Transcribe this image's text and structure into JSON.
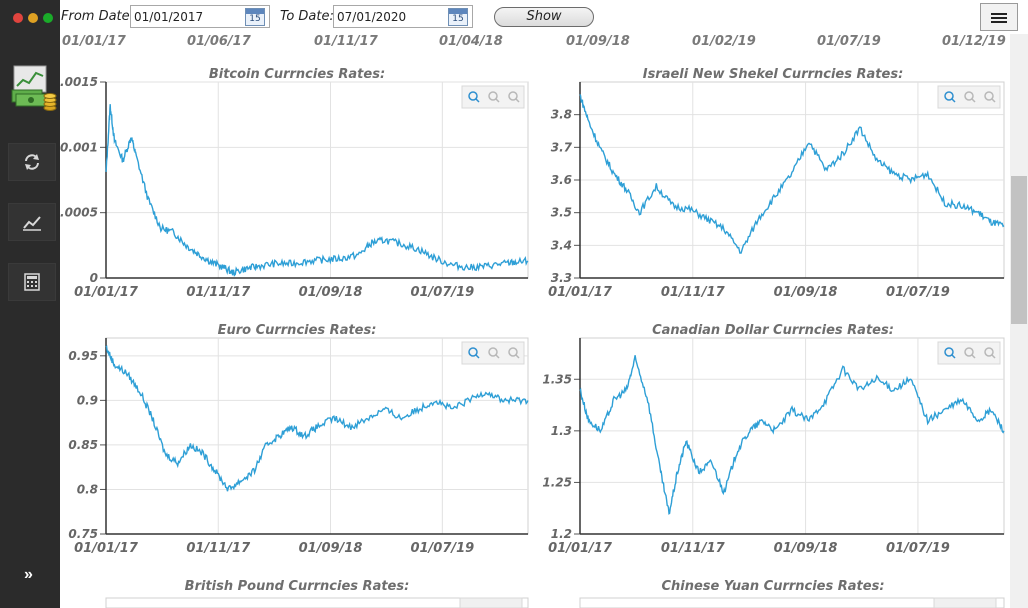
{
  "toolbar": {
    "from_label": "From Date:",
    "from_value": "01/01/2017",
    "to_label": "To Date:",
    "to_value": "07/01/2020",
    "calendar_day": "15",
    "show_label": "Show"
  },
  "timeline": [
    "01/01/17",
    "01/06/17",
    "01/11/17",
    "01/04/18",
    "01/09/18",
    "01/02/19",
    "01/07/19",
    "01/12/19"
  ],
  "colors": {
    "series": "#2e9fd6",
    "sidebar": "#2b2b2b",
    "zoom_icon": "#2e8fcf"
  },
  "chart_data": [
    {
      "type": "line",
      "title": "Bitcoin Currncies Rates:",
      "ylim": [
        0,
        0.0015
      ],
      "yticks": [
        "0",
        "0.0005",
        "0.001",
        "0.0015"
      ],
      "yticks_values": [
        0,
        0.0005,
        0.001,
        0.0015
      ],
      "xticks": [
        "01/01/17",
        "01/11/17",
        "01/09/18",
        "01/07/19"
      ],
      "xlim": [
        0,
        1.0
      ],
      "xticks_pos": [
        0.0,
        0.266,
        0.532,
        0.797
      ],
      "grid": true,
      "series": [
        {
          "x": [
            0.0,
            0.01,
            0.02,
            0.04,
            0.06,
            0.07,
            0.1,
            0.13,
            0.16,
            0.19,
            0.22,
            0.25,
            0.28,
            0.3,
            0.33,
            0.36,
            0.4,
            0.44,
            0.48,
            0.52,
            0.56,
            0.6,
            0.63,
            0.66,
            0.7,
            0.74,
            0.78,
            0.82,
            0.86,
            0.9,
            0.94,
            0.97,
            1.0
          ],
          "y": [
            0.0008,
            0.00132,
            0.00105,
            0.0009,
            0.00108,
            0.00095,
            0.0006,
            0.00038,
            0.00035,
            0.00025,
            0.00018,
            0.00012,
            8e-05,
            4e-05,
            7e-05,
            9e-05,
            0.00011,
            0.00011,
            0.00013,
            0.00014,
            0.00015,
            0.00018,
            0.00027,
            0.00029,
            0.00026,
            0.00022,
            0.00015,
            0.0001,
            8e-05,
            9e-05,
            0.00011,
            0.00012,
            0.00013
          ]
        }
      ]
    },
    {
      "type": "line",
      "title": "Israeli New Shekel Currncies Rates:",
      "ylim": [
        3.3,
        3.9
      ],
      "yticks": [
        "3.3",
        "3.4",
        "3.5",
        "3.6",
        "3.7",
        "3.8"
      ],
      "yticks_values": [
        3.3,
        3.4,
        3.5,
        3.6,
        3.7,
        3.8
      ],
      "xticks": [
        "01/01/17",
        "01/11/17",
        "01/09/18",
        "01/07/19"
      ],
      "xlim": [
        0,
        1.0
      ],
      "xticks_pos": [
        0.0,
        0.266,
        0.532,
        0.797
      ],
      "grid": true,
      "series": [
        {
          "x": [
            0.0,
            0.02,
            0.05,
            0.08,
            0.11,
            0.14,
            0.18,
            0.22,
            0.26,
            0.3,
            0.34,
            0.38,
            0.42,
            0.46,
            0.5,
            0.54,
            0.58,
            0.62,
            0.66,
            0.7,
            0.74,
            0.78,
            0.82,
            0.86,
            0.9,
            0.94,
            0.97,
            1.0
          ],
          "y": [
            3.86,
            3.78,
            3.69,
            3.62,
            3.57,
            3.5,
            3.58,
            3.52,
            3.51,
            3.48,
            3.45,
            3.38,
            3.48,
            3.55,
            3.62,
            3.72,
            3.63,
            3.68,
            3.76,
            3.66,
            3.62,
            3.6,
            3.62,
            3.53,
            3.52,
            3.5,
            3.47,
            3.46
          ]
        }
      ]
    },
    {
      "type": "line",
      "title": "Euro Currncies Rates:",
      "ylim": [
        0.75,
        0.97
      ],
      "yticks": [
        "0.75",
        "0.8",
        "0.85",
        "0.9",
        "0.95"
      ],
      "yticks_values": [
        0.75,
        0.8,
        0.85,
        0.9,
        0.95
      ],
      "xticks": [
        "01/01/17",
        "01/11/17",
        "01/09/18",
        "01/07/19"
      ],
      "xlim": [
        0,
        1.0
      ],
      "xticks_pos": [
        0.0,
        0.266,
        0.532,
        0.797
      ],
      "grid": true,
      "series": [
        {
          "x": [
            0.0,
            0.02,
            0.05,
            0.08,
            0.11,
            0.14,
            0.17,
            0.2,
            0.23,
            0.26,
            0.29,
            0.32,
            0.35,
            0.38,
            0.41,
            0.44,
            0.47,
            0.5,
            0.54,
            0.58,
            0.62,
            0.66,
            0.7,
            0.74,
            0.78,
            0.82,
            0.86,
            0.9,
            0.94,
            0.97,
            1.0
          ],
          "y": [
            0.96,
            0.94,
            0.93,
            0.91,
            0.88,
            0.84,
            0.83,
            0.85,
            0.84,
            0.82,
            0.8,
            0.81,
            0.82,
            0.85,
            0.86,
            0.87,
            0.86,
            0.87,
            0.88,
            0.87,
            0.88,
            0.89,
            0.88,
            0.89,
            0.9,
            0.89,
            0.9,
            0.91,
            0.9,
            0.9,
            0.9
          ]
        }
      ]
    },
    {
      "type": "line",
      "title": "Canadian Dollar Currncies Rates:",
      "ylim": [
        1.2,
        1.39
      ],
      "yticks": [
        "1.2",
        "1.25",
        "1.3",
        "1.35"
      ],
      "yticks_values": [
        1.2,
        1.25,
        1.3,
        1.35
      ],
      "xticks": [
        "01/01/17",
        "01/11/17",
        "01/09/18",
        "01/07/19"
      ],
      "xlim": [
        0,
        1.0
      ],
      "xticks_pos": [
        0.0,
        0.266,
        0.532,
        0.797
      ],
      "grid": true,
      "series": [
        {
          "x": [
            0.0,
            0.02,
            0.05,
            0.08,
            0.11,
            0.13,
            0.16,
            0.19,
            0.21,
            0.23,
            0.25,
            0.28,
            0.31,
            0.34,
            0.37,
            0.4,
            0.43,
            0.46,
            0.5,
            0.54,
            0.58,
            0.62,
            0.66,
            0.7,
            0.74,
            0.78,
            0.82,
            0.86,
            0.9,
            0.94,
            0.97,
            1.0
          ],
          "y": [
            1.34,
            1.31,
            1.3,
            1.33,
            1.34,
            1.37,
            1.33,
            1.26,
            1.22,
            1.26,
            1.29,
            1.26,
            1.27,
            1.24,
            1.28,
            1.3,
            1.31,
            1.3,
            1.32,
            1.31,
            1.33,
            1.36,
            1.34,
            1.35,
            1.34,
            1.35,
            1.31,
            1.32,
            1.33,
            1.31,
            1.32,
            1.3
          ]
        }
      ]
    },
    {
      "type": "line",
      "title": "British Pound Currncies Rates:"
    },
    {
      "type": "line",
      "title": "Chinese Yuan Currncies Rates:"
    }
  ]
}
